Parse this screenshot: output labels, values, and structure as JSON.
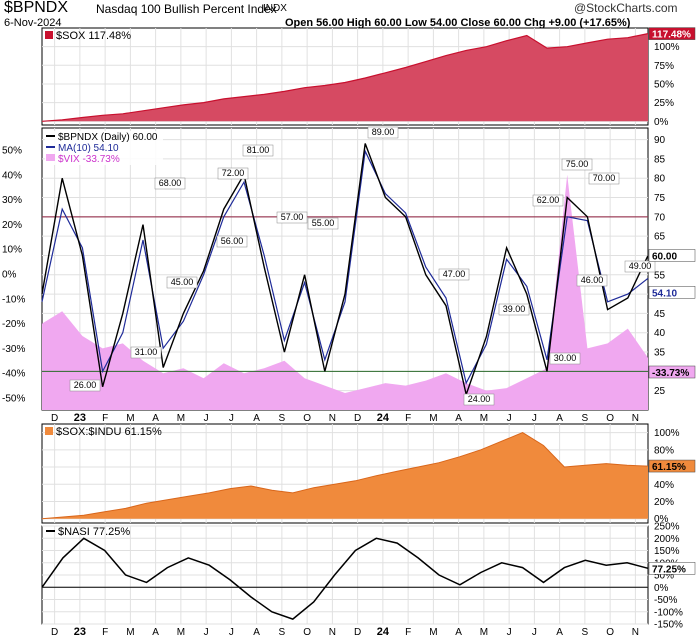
{
  "header": {
    "symbol": "$BPNDX",
    "name": "Nasdaq 100 Bullish Percent Index",
    "exchange": "INDX",
    "date": "6-Nov-2024",
    "ohlc": "Open 56.00  High 60.00  Low 54.00  Close 60.00  Chg +9.00 (+17.65%)",
    "watermark": "@StockCharts.com"
  },
  "colors": {
    "sox": "#c8102e",
    "sox_fill": "#d64a62",
    "bpndx": "#000000",
    "ma": "#1f2b99",
    "vix": "#f0a8f0",
    "vix_text": "#cc33cc",
    "ratio": "#f08a3c",
    "nasi": "#000000",
    "upper_line": "#8b1a3a",
    "lower_line": "#2a6a2a"
  },
  "chart_data": [
    {
      "type": "area",
      "panel": "sox",
      "legend": "$SOX 117.48%",
      "last_label": "117.48%",
      "y_ticks_right": [
        "100%",
        "75%",
        "50%",
        "25%",
        "0%"
      ],
      "ylim": [
        -5,
        125
      ],
      "series": [
        {
          "name": "$SOX",
          "values": [
            0,
            2,
            5,
            8,
            10,
            14,
            18,
            22,
            25,
            30,
            33,
            36,
            40,
            45,
            48,
            52,
            58,
            65,
            72,
            80,
            88,
            95,
            100,
            108,
            115,
            98,
            100,
            105,
            110,
            112,
            117.48
          ]
        }
      ]
    },
    {
      "type": "line",
      "panel": "bpndx",
      "legend": [
        "$BPNDX (Daily) 60.00",
        "MA(10) 54.10",
        "$VIX -33.73%"
      ],
      "x_ticks": [
        "D",
        "23",
        "F",
        "M",
        "A",
        "M",
        "J",
        "J",
        "A",
        "S",
        "O",
        "N",
        "D",
        "24",
        "F",
        "M",
        "A",
        "M",
        "J",
        "J",
        "A",
        "S",
        "O",
        "N"
      ],
      "y_ticks_right": [
        "90",
        "85",
        "80",
        "75",
        "70",
        "65",
        "60",
        "55",
        "50",
        "45",
        "40",
        "35",
        "30",
        "25"
      ],
      "y_ticks_left": [
        "50%",
        "40%",
        "30%",
        "20%",
        "10%",
        "0%",
        "-10%",
        "-20%",
        "-30%",
        "-40%",
        "-50%"
      ],
      "ylim": [
        20,
        93
      ],
      "annotations": [
        "68.00",
        "81.00",
        "72.00",
        "57.00",
        "55.00",
        "89.00",
        "56.00",
        "45.00",
        "31.00",
        "26.00",
        "47.00",
        "24.00",
        "39.00",
        "62.00",
        "75.00",
        "70.00",
        "46.00",
        "30.00",
        "49.00"
      ],
      "last_labels": {
        "bpndx": "60.00",
        "ma": "54.10",
        "vix": "-33.73%"
      },
      "reference_lines": [
        70,
        30
      ],
      "series": [
        {
          "name": "$BPNDX",
          "values": [
            50,
            80,
            60,
            26,
            45,
            68,
            31,
            45,
            56,
            72,
            81,
            57,
            35,
            55,
            30,
            50,
            89,
            75,
            70,
            55,
            47,
            24,
            39,
            62,
            50,
            30,
            75,
            70,
            46,
            49,
            60
          ]
        },
        {
          "name": "MA(10)",
          "values": [
            48,
            72,
            62,
            30,
            40,
            64,
            36,
            43,
            55,
            70,
            79,
            60,
            38,
            53,
            33,
            48,
            87,
            76,
            71,
            57,
            49,
            27,
            37,
            59,
            52,
            33,
            70,
            69,
            48,
            50,
            54.1
          ]
        },
        {
          "name": "$VIX",
          "values": [
            -20,
            -15,
            -25,
            -30,
            -28,
            -35,
            -40,
            -38,
            -42,
            -36,
            -40,
            -38,
            -35,
            -42,
            -45,
            -48,
            -46,
            -44,
            -45,
            -43,
            -40,
            -44,
            -47,
            -46,
            -42,
            -38,
            40,
            -30,
            -28,
            -22,
            -33.73
          ]
        }
      ]
    },
    {
      "type": "area",
      "panel": "ratio",
      "legend": "$SOX:$INDU 61.15%",
      "last_label": "61.15%",
      "y_ticks_right": [
        "100%",
        "80%",
        "60%",
        "40%",
        "20%",
        "0%"
      ],
      "ylim": [
        -5,
        110
      ],
      "series": [
        {
          "name": "$SOX:$INDU",
          "values": [
            0,
            2,
            4,
            8,
            12,
            18,
            22,
            26,
            30,
            35,
            38,
            33,
            30,
            36,
            40,
            44,
            50,
            55,
            60,
            65,
            72,
            80,
            90,
            100,
            85,
            60,
            62,
            64,
            62,
            61.15
          ]
        }
      ]
    },
    {
      "type": "line",
      "panel": "nasi",
      "legend": "$NASI 77.25%",
      "last_label": "77.25%",
      "y_ticks_right": [
        "250%",
        "200%",
        "150%",
        "100%",
        "50%",
        "0%",
        "-50%",
        "-100%",
        "-150%"
      ],
      "ylim": [
        -150,
        250
      ],
      "x_ticks": [
        "D",
        "23",
        "F",
        "M",
        "A",
        "M",
        "J",
        "J",
        "A",
        "S",
        "O",
        "N",
        "D",
        "24",
        "F",
        "M",
        "A",
        "M",
        "J",
        "J",
        "A",
        "S",
        "O",
        "N"
      ],
      "series": [
        {
          "name": "$NASI",
          "values": [
            0,
            120,
            200,
            150,
            50,
            20,
            80,
            120,
            90,
            30,
            -40,
            -100,
            -130,
            -60,
            50,
            150,
            200,
            180,
            120,
            50,
            10,
            60,
            100,
            80,
            20,
            80,
            110,
            90,
            100,
            77.25
          ]
        }
      ]
    }
  ]
}
